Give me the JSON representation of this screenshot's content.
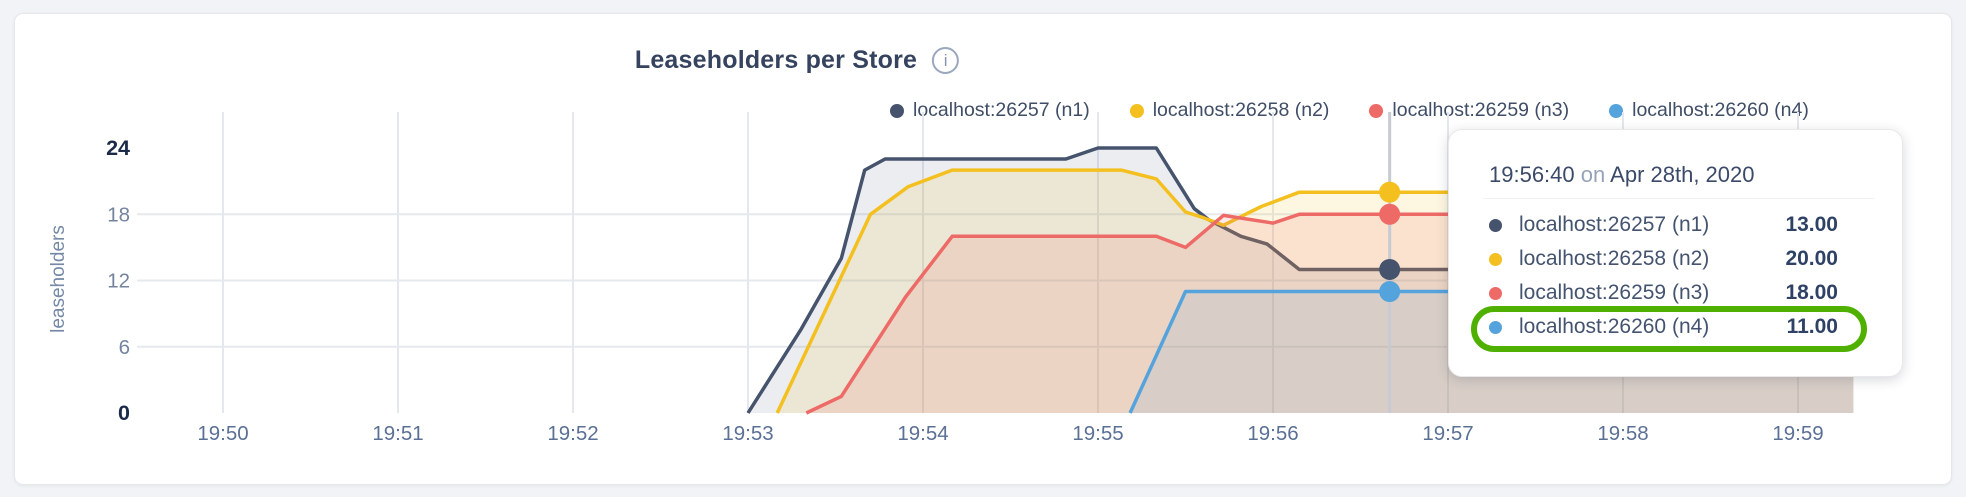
{
  "header": {
    "info_icon_glyph": "i"
  },
  "chart_data": {
    "type": "area",
    "title": "Leaseholders per Store",
    "ylabel": "leaseholders",
    "ylim": [
      0,
      24
    ],
    "grid": true,
    "legend_position": "top-right",
    "x_unit": "seconds since 19:50:00",
    "x_range_seconds": [
      0,
      560
    ],
    "x_tick_labels": [
      "19:50",
      "19:51",
      "19:52",
      "19:53",
      "19:54",
      "19:55",
      "19:56",
      "19:57",
      "19:58",
      "19:59"
    ],
    "y_ticks": [
      {
        "value": 24,
        "label": "24",
        "emphasized": true,
        "gridline": false
      },
      {
        "value": 18,
        "label": "18",
        "emphasized": false,
        "gridline": true
      },
      {
        "value": 12,
        "label": "12",
        "emphasized": false,
        "gridline": true
      },
      {
        "value": 6,
        "label": "6",
        "emphasized": false,
        "gridline": true
      },
      {
        "value": 0,
        "label": "0",
        "emphasized": true,
        "gridline": false
      }
    ],
    "series": [
      {
        "name": "localhost:26257 (n1)",
        "color": "#46536D",
        "fill_opacity": 0.1,
        "points": [
          [
            180,
            0
          ],
          [
            198,
            7.5
          ],
          [
            212,
            14
          ],
          [
            220,
            22
          ],
          [
            227,
            23
          ],
          [
            289,
            23
          ],
          [
            300,
            24
          ],
          [
            320,
            24
          ],
          [
            333,
            18.5
          ],
          [
            338,
            17.5
          ],
          [
            349,
            16
          ],
          [
            358,
            15.3
          ],
          [
            369,
            13
          ],
          [
            559,
            13
          ]
        ]
      },
      {
        "name": "localhost:26258 (n2)",
        "color": "#F3C020",
        "fill_opacity": 0.13,
        "points": [
          [
            190,
            0
          ],
          [
            222,
            18
          ],
          [
            235,
            20.5
          ],
          [
            250,
            22
          ],
          [
            308,
            22
          ],
          [
            320,
            21.2
          ],
          [
            330,
            18.2
          ],
          [
            336,
            17.7
          ],
          [
            343,
            17
          ],
          [
            356,
            18.7
          ],
          [
            369,
            20
          ],
          [
            559,
            20
          ]
        ]
      },
      {
        "name": "localhost:26259 (n3)",
        "color": "#ED6A67",
        "fill_opacity": 0.15,
        "points": [
          [
            200,
            0
          ],
          [
            212,
            1.5
          ],
          [
            234,
            10.5
          ],
          [
            250,
            16
          ],
          [
            320,
            16
          ],
          [
            330,
            15
          ],
          [
            343,
            17.9
          ],
          [
            360,
            17.2
          ],
          [
            369,
            18
          ],
          [
            559,
            18
          ]
        ]
      },
      {
        "name": "localhost:26260 (n4)",
        "color": "#55A3DC",
        "fill_opacity": 0.12,
        "points": [
          [
            311,
            0
          ],
          [
            330,
            11
          ],
          [
            559,
            11
          ]
        ]
      }
    ],
    "hover": {
      "t_seconds": 400,
      "time_label": "19:56:40",
      "joiner": "on",
      "date_label": "Apr 28th, 2020",
      "values": [
        13,
        20,
        18,
        11
      ],
      "value_labels": [
        "13.00",
        "20.00",
        "18.00",
        "11.00"
      ],
      "line_color": "#C7CAD2",
      "highlight_index": 3,
      "highlight_ring_color": "#4FB000"
    }
  }
}
